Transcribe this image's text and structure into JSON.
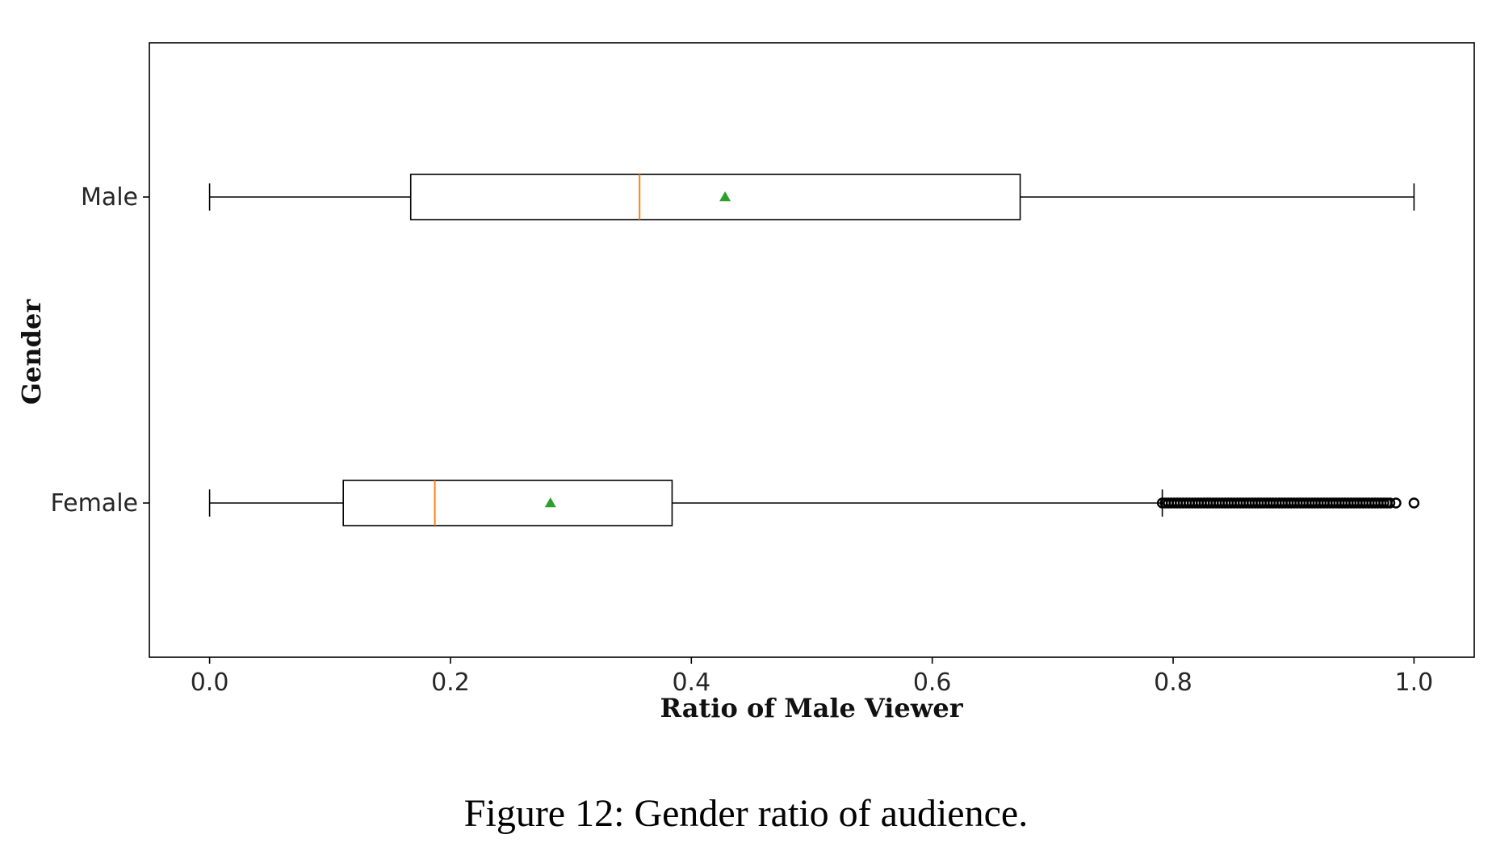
{
  "caption": "Figure 12: Gender ratio of audience.",
  "chart_data": {
    "type": "boxplot",
    "orientation": "horizontal",
    "xlabel": "Ratio of Male Viewer",
    "ylabel": "Gender",
    "xlim": [
      -0.05,
      1.05
    ],
    "xticks": [
      "0.0",
      "0.2",
      "0.4",
      "0.6",
      "0.8",
      "1.0"
    ],
    "grid": false,
    "categories": [
      "Male",
      "Female"
    ],
    "boxes": [
      {
        "name": "Male",
        "whisker_low": 0.0,
        "q1": 0.167,
        "median": 0.357,
        "mean": 0.428,
        "q3": 0.673,
        "whisker_high": 1.0,
        "outliers": []
      },
      {
        "name": "Female",
        "whisker_low": 0.0,
        "q1": 0.111,
        "median": 0.187,
        "mean": 0.283,
        "q3": 0.384,
        "whisker_high": 0.791,
        "outliers_dense_range": [
          0.791,
          0.98
        ],
        "outliers": [
          0.985,
          1.0
        ]
      }
    ],
    "colors": {
      "box": "#000000",
      "median": "#ff7f0e",
      "mean": "#2ca02c",
      "outlier": "#000000"
    }
  }
}
